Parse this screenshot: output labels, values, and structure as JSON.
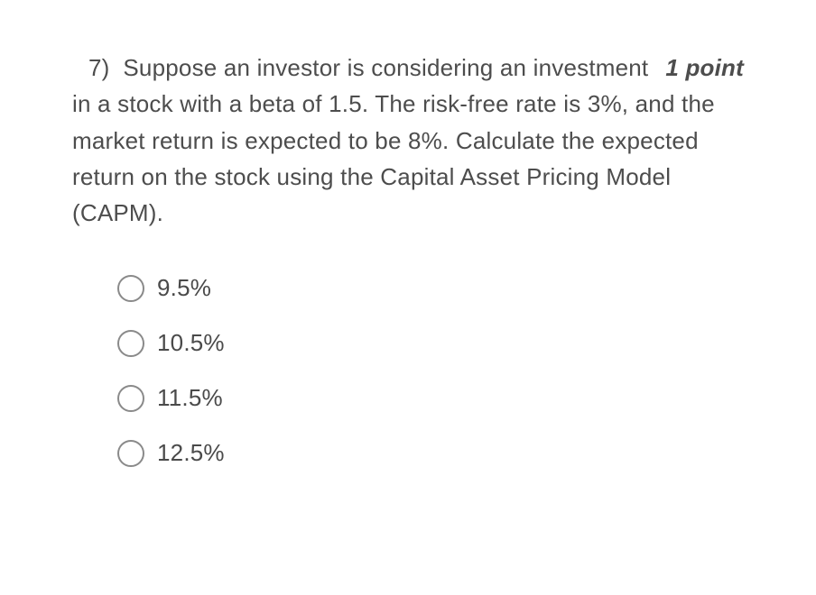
{
  "question": {
    "number": "7)",
    "points_label": "1 point",
    "text_line1_start": "Suppose an investor is considering an",
    "text_rest": "investment in a stock with a beta of 1.5. The risk-free rate is 3%, and the market return is expected to be 8%. Calculate the expected return on the stock using the Capital Asset Pricing Model (CAPM)."
  },
  "options": [
    {
      "label": "9.5%"
    },
    {
      "label": "10.5%"
    },
    {
      "label": "11.5%"
    },
    {
      "label": "12.5%"
    }
  ],
  "style": {
    "background_color": "#ffffff",
    "text_color": "#4d4d4d",
    "radio_border_color": "#8a8a8a",
    "font_size_question": 26,
    "font_size_option": 26,
    "radio_size": 30
  }
}
